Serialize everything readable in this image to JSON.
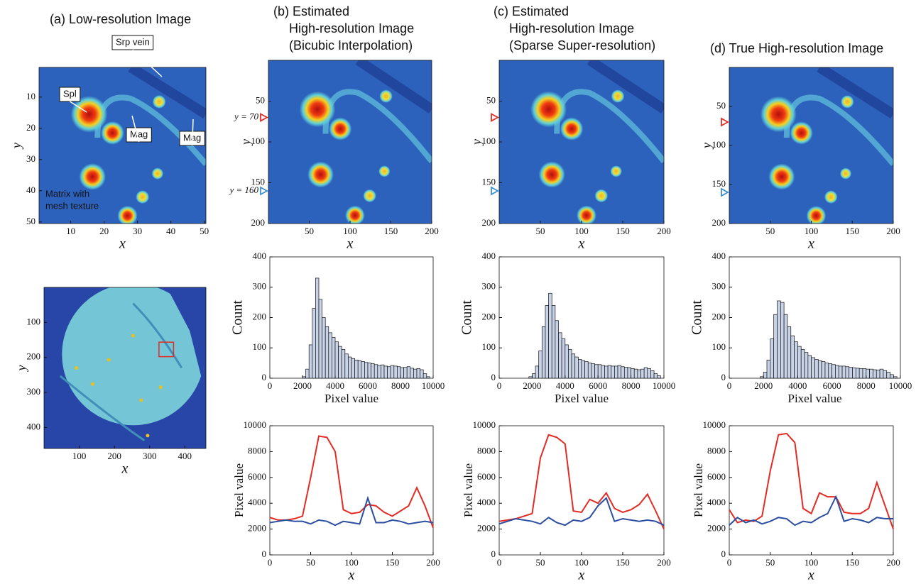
{
  "chart_data": [
    {
      "type": "image",
      "title": [
        "(a) Low-resolution Image"
      ],
      "xlabel": "x",
      "ylabel": "y",
      "xlim": [
        0.5,
        50.5
      ],
      "ylim": [
        0.5,
        50.5
      ],
      "y_reversed": true,
      "xticks": [
        10,
        20,
        30,
        40,
        50
      ],
      "yticks": [
        10,
        20,
        30,
        40,
        50
      ],
      "annotations": [
        "Srp vein",
        "Spl",
        "Mag",
        "Mag",
        "Matrix with",
        "mesh texture"
      ]
    },
    {
      "type": "image",
      "variant": "full",
      "xlabel": "x",
      "ylabel": "y",
      "xlim": [
        0,
        460
      ],
      "ylim": [
        0,
        460
      ],
      "y_reversed": true,
      "xticks": [
        100,
        200,
        300,
        400
      ],
      "yticks": [
        100,
        200,
        300,
        400
      ]
    },
    {
      "type": "image",
      "title": [
        "(b) Estimated",
        "High-resolution Image",
        "(Bicubic Interpolation)"
      ],
      "xlabel": "x",
      "ylabel": "y",
      "xlim": [
        0,
        200
      ],
      "ylim": [
        0,
        200
      ],
      "y_reversed": true,
      "xticks": [
        50,
        100,
        150,
        200
      ],
      "yticks": [
        50,
        100,
        150,
        200
      ],
      "markers": [
        {
          "label": "y = 70",
          "value": 70,
          "color": "#e32b23"
        },
        {
          "label": "y = 160",
          "value": 160,
          "color": "#3a8fd0"
        }
      ]
    },
    {
      "type": "histogram",
      "xlabel": "Pixel value",
      "ylabel": "Count",
      "xlim": [
        0,
        10000
      ],
      "ylim": [
        0,
        400
      ],
      "xticks": [
        0,
        2000,
        4000,
        6000,
        8000,
        10000
      ],
      "yticks": [
        0,
        100,
        200,
        300,
        400
      ],
      "color": "#c9d3e8",
      "bins": [
        1800,
        2000,
        2200,
        2400,
        2600,
        2800,
        3000,
        3200,
        3400,
        3600,
        3800,
        4000,
        4200,
        4400,
        4600,
        4800,
        5000,
        5200,
        5400,
        5600,
        5800,
        6000,
        6200,
        6400,
        6600,
        6800,
        7000,
        7200,
        7400,
        7600,
        7800,
        8000,
        8200,
        8400,
        8600,
        8800,
        9000,
        9200,
        9400,
        9600,
        9800
      ],
      "counts": [
        0,
        5,
        30,
        110,
        230,
        330,
        260,
        200,
        170,
        150,
        135,
        120,
        105,
        95,
        80,
        70,
        65,
        60,
        58,
        55,
        52,
        50,
        48,
        45,
        42,
        44,
        40,
        38,
        42,
        40,
        38,
        35,
        36,
        38,
        33,
        30,
        32,
        28,
        15,
        5
      ]
    },
    {
      "type": "line",
      "xlabel": "x",
      "ylabel": "Pixel value",
      "xlim": [
        0,
        200
      ],
      "ylim": [
        0,
        10000
      ],
      "xticks": [
        0,
        50,
        100,
        150,
        200
      ],
      "yticks": [
        0,
        2000,
        4000,
        6000,
        8000,
        10000
      ],
      "x": [
        0,
        10,
        20,
        30,
        40,
        50,
        60,
        70,
        80,
        90,
        100,
        110,
        120,
        130,
        140,
        150,
        160,
        170,
        180,
        190,
        200
      ],
      "series": [
        {
          "color": "#e32b23",
          "values": [
            2900,
            2700,
            2700,
            2800,
            3000,
            6000,
            9200,
            9100,
            8000,
            3500,
            3200,
            3300,
            3900,
            3800,
            3300,
            3000,
            3400,
            3800,
            5200,
            3800,
            2100
          ]
        },
        {
          "color": "#2b4ea0",
          "values": [
            2500,
            2600,
            2700,
            2600,
            2600,
            2400,
            2700,
            2600,
            2300,
            2600,
            2500,
            2400,
            4400,
            2500,
            2500,
            2700,
            2600,
            2400,
            2500,
            2600,
            2500
          ]
        }
      ]
    },
    {
      "type": "image",
      "title": [
        "(c) Estimated",
        "High-resolution Image",
        "(Sparse Super-resolution)"
      ],
      "xlabel": "x",
      "ylabel": "y",
      "xlim": [
        0,
        200
      ],
      "ylim": [
        0,
        200
      ],
      "y_reversed": true,
      "xticks": [
        50,
        100,
        150,
        200
      ],
      "yticks": [
        50,
        100,
        150,
        200
      ],
      "markers": [
        {
          "value": 70,
          "color": "#e32b23"
        },
        {
          "value": 160,
          "color": "#3a8fd0"
        }
      ]
    },
    {
      "type": "histogram",
      "xlabel": "Pixel value",
      "ylabel": "Count",
      "xlim": [
        0,
        10000
      ],
      "ylim": [
        0,
        400
      ],
      "xticks": [
        0,
        2000,
        4000,
        6000,
        8000,
        10000
      ],
      "yticks": [
        0,
        100,
        200,
        300,
        400
      ],
      "color": "#c9d3e8",
      "bins": [
        1800,
        2000,
        2200,
        2400,
        2600,
        2800,
        3000,
        3200,
        3400,
        3600,
        3800,
        4000,
        4200,
        4400,
        4600,
        4800,
        5000,
        5200,
        5400,
        5600,
        5800,
        6000,
        6200,
        6400,
        6600,
        6800,
        7000,
        7200,
        7400,
        7600,
        7800,
        8000,
        8200,
        8400,
        8600,
        8800,
        9000,
        9200,
        9400,
        9600,
        9800
      ],
      "counts": [
        5,
        15,
        40,
        90,
        170,
        240,
        280,
        240,
        190,
        150,
        130,
        110,
        95,
        80,
        70,
        62,
        58,
        55,
        50,
        48,
        45,
        45,
        42,
        40,
        42,
        40,
        40,
        42,
        38,
        36,
        35,
        32,
        30,
        28,
        30,
        35,
        32,
        25,
        15,
        8
      ]
    },
    {
      "type": "line",
      "xlabel": "x",
      "ylabel": "Pixel value",
      "xlim": [
        0,
        200
      ],
      "ylim": [
        0,
        10000
      ],
      "xticks": [
        0,
        50,
        100,
        150,
        200
      ],
      "yticks": [
        0,
        2000,
        4000,
        6000,
        8000,
        10000
      ],
      "x": [
        0,
        10,
        20,
        30,
        40,
        50,
        60,
        70,
        80,
        90,
        100,
        110,
        120,
        130,
        140,
        150,
        160,
        170,
        180,
        190,
        200
      ],
      "series": [
        {
          "color": "#e32b23",
          "values": [
            2600,
            2700,
            2800,
            3000,
            3200,
            7500,
            9300,
            9100,
            8600,
            3400,
            3300,
            4300,
            4000,
            4800,
            3600,
            3300,
            3500,
            3900,
            4700,
            3400,
            2000
          ]
        },
        {
          "color": "#2b4ea0",
          "values": [
            2400,
            2600,
            2800,
            2700,
            2600,
            2400,
            2900,
            2500,
            2300,
            2700,
            2600,
            2900,
            3800,
            4400,
            2600,
            2800,
            2700,
            2600,
            2700,
            2600,
            2300
          ]
        }
      ]
    },
    {
      "type": "image",
      "title": [
        "(d) True High-resolution Image"
      ],
      "xlabel": "x",
      "ylabel": "y",
      "xlim": [
        0,
        200
      ],
      "ylim": [
        0,
        200
      ],
      "y_reversed": true,
      "xticks": [
        50,
        100,
        150,
        200
      ],
      "yticks": [
        50,
        100,
        150,
        200
      ],
      "markers": [
        {
          "value": 70,
          "color": "#e32b23"
        },
        {
          "value": 160,
          "color": "#3a8fd0"
        }
      ]
    },
    {
      "type": "histogram",
      "xlabel": "Pixel value",
      "ylabel": "Count",
      "xlim": [
        0,
        10000
      ],
      "ylim": [
        0,
        400
      ],
      "xticks": [
        0,
        2000,
        4000,
        6000,
        8000,
        10000
      ],
      "yticks": [
        0,
        100,
        200,
        300,
        400
      ],
      "color": "#c9d3e8",
      "bins": [
        1800,
        2000,
        2200,
        2400,
        2600,
        2800,
        3000,
        3200,
        3400,
        3600,
        3800,
        4000,
        4200,
        4400,
        4600,
        4800,
        5000,
        5200,
        5400,
        5600,
        5800,
        6000,
        6200,
        6400,
        6600,
        6800,
        7000,
        7200,
        7400,
        7600,
        7800,
        8000,
        8200,
        8400,
        8600,
        8800,
        9000,
        9200,
        9400,
        9600,
        9800
      ],
      "counts": [
        5,
        20,
        60,
        130,
        210,
        255,
        250,
        210,
        170,
        140,
        120,
        105,
        95,
        85,
        75,
        68,
        62,
        58,
        55,
        50,
        48,
        45,
        42,
        40,
        40,
        38,
        36,
        34,
        33,
        32,
        32,
        30,
        30,
        28,
        27,
        30,
        25,
        20,
        12,
        5
      ]
    },
    {
      "type": "line",
      "xlabel": "x",
      "ylabel": "Pixel value",
      "xlim": [
        0,
        200
      ],
      "ylim": [
        0,
        10000
      ],
      "xticks": [
        0,
        50,
        100,
        150,
        200
      ],
      "yticks": [
        0,
        2000,
        4000,
        6000,
        8000,
        10000
      ],
      "x": [
        0,
        10,
        20,
        30,
        40,
        50,
        60,
        70,
        80,
        90,
        100,
        110,
        120,
        130,
        140,
        150,
        160,
        170,
        180,
        190,
        200
      ],
      "series": [
        {
          "color": "#e32b23",
          "values": [
            3500,
            2500,
            2700,
            2600,
            3000,
            6500,
            9300,
            9400,
            8700,
            3600,
            3200,
            4800,
            4500,
            4500,
            3300,
            3200,
            3200,
            3600,
            5600,
            3800,
            2000
          ]
        },
        {
          "color": "#2b4ea0",
          "values": [
            2300,
            2900,
            2500,
            2700,
            2400,
            2600,
            2900,
            2800,
            2300,
            2600,
            2500,
            2900,
            3200,
            4500,
            2600,
            2800,
            2700,
            2500,
            2900,
            2800,
            2800
          ]
        }
      ]
    }
  ]
}
